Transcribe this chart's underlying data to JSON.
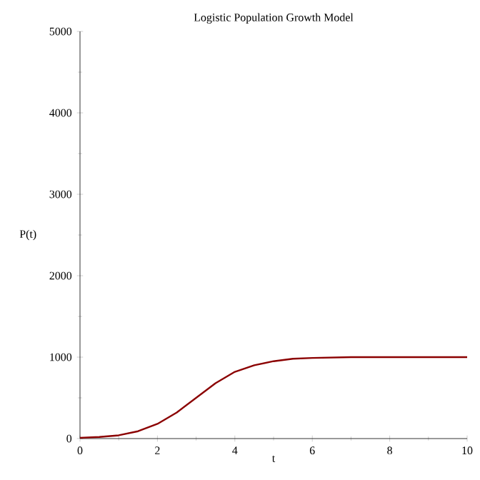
{
  "chart_data": {
    "type": "line",
    "title": "Logistic Population Growth Model",
    "xlabel": "t",
    "ylabel": "P(t)",
    "x": [
      0,
      0.5,
      1,
      1.5,
      2,
      2.5,
      3,
      3.5,
      4,
      4.5,
      5,
      5.5,
      6,
      7,
      8,
      9,
      10
    ],
    "series": [
      {
        "color": "#8b0000",
        "values": [
          10,
          20,
          40,
          90,
          180,
          320,
          500,
          680,
          820,
          900,
          950,
          980,
          990,
          1000,
          1000,
          1000,
          1000
        ]
      }
    ],
    "xlim": [
      0,
      10
    ],
    "ylim": [
      0,
      5000
    ],
    "xticks": [
      0,
      2,
      4,
      6,
      8,
      10
    ],
    "yticks": [
      0,
      1000,
      2000,
      3000,
      4000,
      5000
    ],
    "marker": "none",
    "line_style": "solid",
    "grid": false
  }
}
